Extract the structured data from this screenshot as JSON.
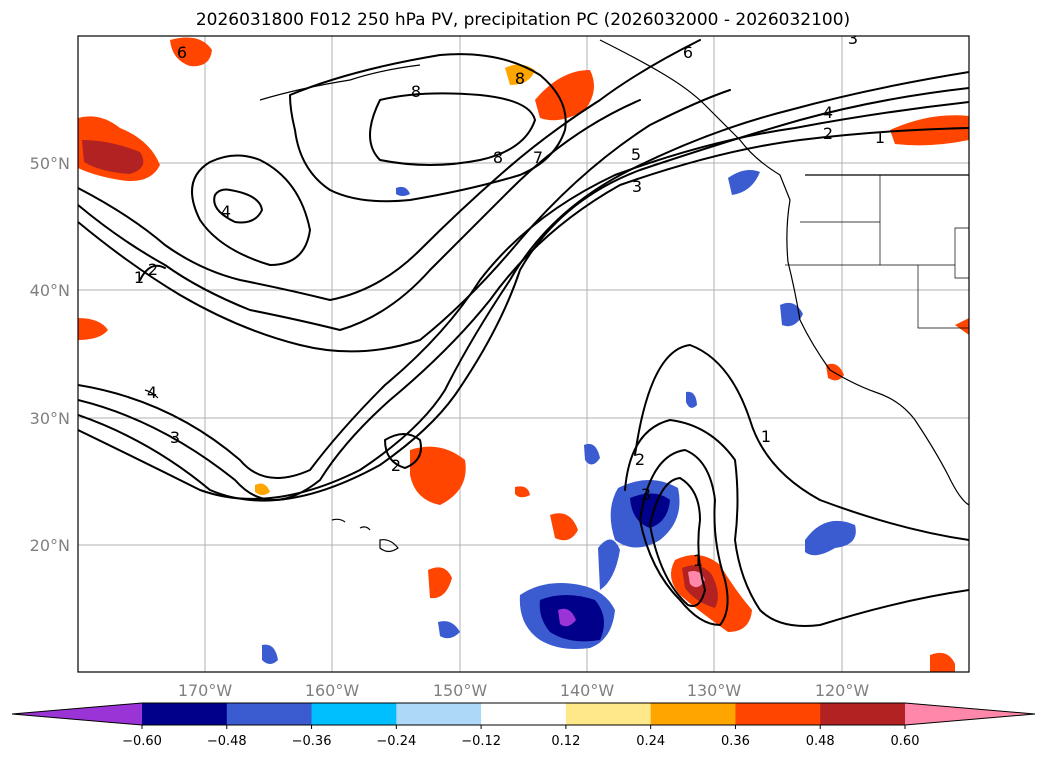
{
  "title": "2026031800 F012 250 hPa PV, precipitation PC (2026032000 - 2026032100)",
  "map": {
    "lon_range": [
      -180,
      -110
    ],
    "lat_range": [
      10,
      60
    ],
    "lat_ticks": [
      "20°N",
      "30°N",
      "40°N",
      "50°N"
    ],
    "lon_ticks": [
      "170°W",
      "160°W",
      "150°W",
      "140°W",
      "130°W",
      "120°W"
    ]
  },
  "colorbar": {
    "ticks": [
      "−0.60",
      "−0.48",
      "−0.36",
      "−0.24",
      "−0.12",
      "0.12",
      "0.24",
      "0.36",
      "0.48",
      "0.60"
    ],
    "colors": [
      "#9b34d6",
      "#00008b",
      "#3b5bd0",
      "#00bfff",
      "#add8f7",
      "#ffffff",
      "#ffe88a",
      "#ffa500",
      "#ff4500",
      "#b22222",
      "#ff88aa"
    ]
  },
  "contour_labels": [
    "8",
    "8",
    "8",
    "7",
    "5",
    "4",
    "3",
    "2",
    "1",
    "6",
    "6",
    "4",
    "2",
    "1",
    "3",
    "2",
    "1",
    "4",
    "2",
    "3",
    "1",
    "3"
  ]
}
